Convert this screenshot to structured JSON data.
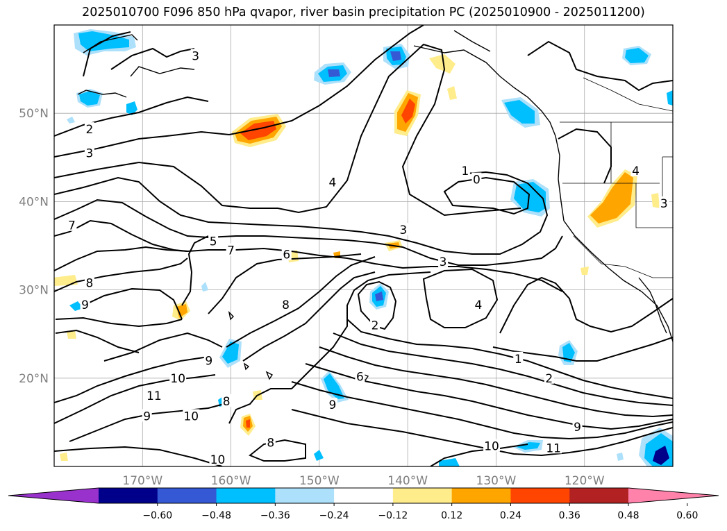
{
  "title": "2025010700 F096 850 hPa qvapor, river basin precipitation PC (2025010900 - 2025011200)",
  "map": {
    "lon_range": [
      -180,
      -110
    ],
    "lat_range": [
      10,
      60
    ],
    "latitude_labels": [
      {
        "lat": 50,
        "text": "50°N"
      },
      {
        "lat": 40,
        "text": "40°N"
      },
      {
        "lat": 30,
        "text": "30°N"
      },
      {
        "lat": 20,
        "text": "20°N"
      }
    ],
    "longitude_labels": [
      {
        "lon": -170,
        "text": "170°W"
      },
      {
        "lon": -160,
        "text": "160°W"
      },
      {
        "lon": -150,
        "text": "150°W"
      },
      {
        "lon": -140,
        "text": "140°W"
      },
      {
        "lon": -130,
        "text": "130°W"
      },
      {
        "lon": -120,
        "text": "120°W"
      }
    ],
    "contour_labels": [
      {
        "text": "3",
        "lon": -164,
        "lat": 56.5
      },
      {
        "text": "2",
        "lon": -176,
        "lat": 48.2
      },
      {
        "text": "3",
        "lon": -176,
        "lat": 45.5
      },
      {
        "text": "4",
        "lon": -148.5,
        "lat": 42.2
      },
      {
        "text": "1",
        "lon": -133.5,
        "lat": 43.5
      },
      {
        "text": "0",
        "lon": -132.2,
        "lat": 42.5
      },
      {
        "text": "4",
        "lon": -114.2,
        "lat": 43.5
      },
      {
        "text": "3",
        "lon": -111,
        "lat": 39.8
      },
      {
        "text": "7",
        "lon": -178,
        "lat": 37.3
      },
      {
        "text": "5",
        "lon": -162,
        "lat": 35.5
      },
      {
        "text": "7",
        "lon": -160,
        "lat": 34.5
      },
      {
        "text": "6",
        "lon": -153.7,
        "lat": 34
      },
      {
        "text": "3",
        "lon": -140.5,
        "lat": 36.8
      },
      {
        "text": "3",
        "lon": -136,
        "lat": 33.2
      },
      {
        "text": "8",
        "lon": -176,
        "lat": 30.8
      },
      {
        "text": "9",
        "lon": -176.5,
        "lat": 28.3
      },
      {
        "text": "8",
        "lon": -153.8,
        "lat": 28.3
      },
      {
        "text": "4",
        "lon": -132,
        "lat": 28.3
      },
      {
        "text": "2",
        "lon": -143.7,
        "lat": 26
      },
      {
        "text": "9",
        "lon": -162.5,
        "lat": 22
      },
      {
        "text": "10",
        "lon": -166,
        "lat": 20
      },
      {
        "text": "11",
        "lon": -168.7,
        "lat": 18
      },
      {
        "text": "8",
        "lon": -160.5,
        "lat": 17.4
      },
      {
        "text": "9",
        "lon": -169.5,
        "lat": 15.7
      },
      {
        "text": "10",
        "lon": -164.5,
        "lat": 15.7
      },
      {
        "text": "8",
        "lon": -155.5,
        "lat": 12.7
      },
      {
        "text": "10",
        "lon": -161.5,
        "lat": 10.8
      },
      {
        "text": "9",
        "lon": -148.5,
        "lat": 17
      },
      {
        "text": "6",
        "lon": -145.4,
        "lat": 20.2
      },
      {
        "text": "1",
        "lon": -127.5,
        "lat": 22.2
      },
      {
        "text": "2",
        "lon": -124,
        "lat": 20
      },
      {
        "text": "9",
        "lon": -120.8,
        "lat": 14.5
      },
      {
        "text": "10",
        "lon": -130.5,
        "lat": 12.3
      },
      {
        "text": "11",
        "lon": -123.5,
        "lat": 12.1
      }
    ]
  },
  "colorbar": {
    "colors": [
      "#9932cc",
      "#00008b",
      "#3558d4",
      "#00bfff",
      "#ade0fa",
      "#ffffff",
      "#ffec8b",
      "#ffa500",
      "#ff4500",
      "#b22222",
      "#ff82ab"
    ],
    "tick_labels": [
      "−0.60",
      "−0.48",
      "−0.36",
      "−0.24",
      "−0.12",
      "0.12",
      "0.24",
      "0.36",
      "0.48",
      "0.60"
    ]
  }
}
